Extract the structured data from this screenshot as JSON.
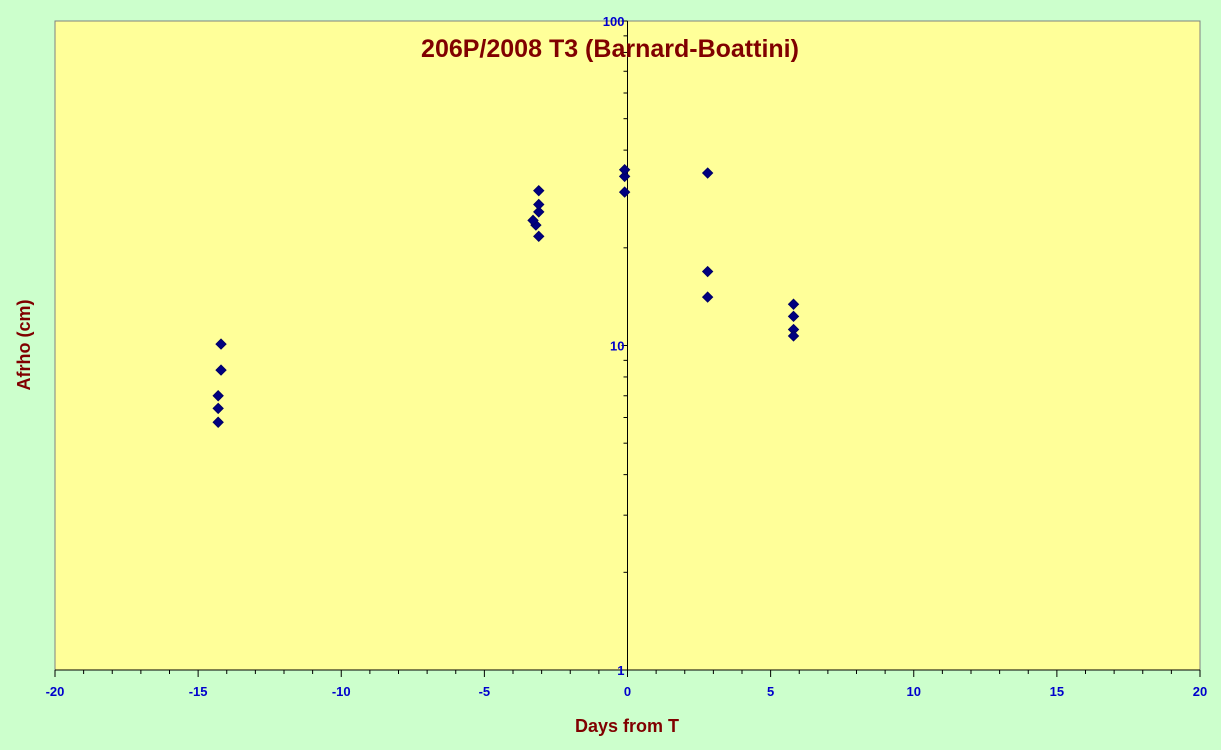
{
  "chart_data": {
    "type": "scatter",
    "title": "206P/2008 T3 (Barnard-Boattini)",
    "xlabel": "Days from T",
    "ylabel": "Afrho (cm)",
    "xlim": [
      -20,
      20
    ],
    "ylim": [
      1,
      100
    ],
    "yscale": "log",
    "x_ticks": [
      -20,
      -15,
      -10,
      -5,
      0,
      5,
      10,
      15,
      20
    ],
    "x_tick_labels": [
      "-20",
      "-15",
      "-10",
      "-5",
      "0",
      "5",
      "10",
      "15",
      "20"
    ],
    "y_ticks": [
      1,
      10,
      100
    ],
    "y_tick_labels": [
      "1",
      "10",
      "100"
    ],
    "grid": false,
    "legend": "none",
    "marker": "diamond",
    "series": [
      {
        "x": [
          -14.2,
          -14.2,
          -14.3,
          -14.3,
          -14.3,
          -3.2,
          -3.3,
          -3.1,
          -3.1,
          -3.1,
          -3.1,
          -0.1,
          -0.1,
          -0.1,
          2.8,
          2.8,
          2.8,
          5.8,
          5.8,
          5.8,
          5.8
        ],
        "y": [
          10.1,
          8.4,
          7.0,
          6.4,
          5.8,
          23.5,
          24.3,
          25.8,
          27.2,
          30.0,
          21.7,
          33.2,
          34.8,
          29.7,
          34.0,
          16.9,
          14.1,
          13.4,
          12.3,
          11.2,
          10.7
        ]
      }
    ],
    "colors": {
      "background": "#ccffcc",
      "plot_area": "#ffff99",
      "marker_fill": "#000080",
      "marker_stroke": "#000066",
      "title": "#800000",
      "tick_labels": "#0000cc",
      "axes": "#000000"
    }
  }
}
